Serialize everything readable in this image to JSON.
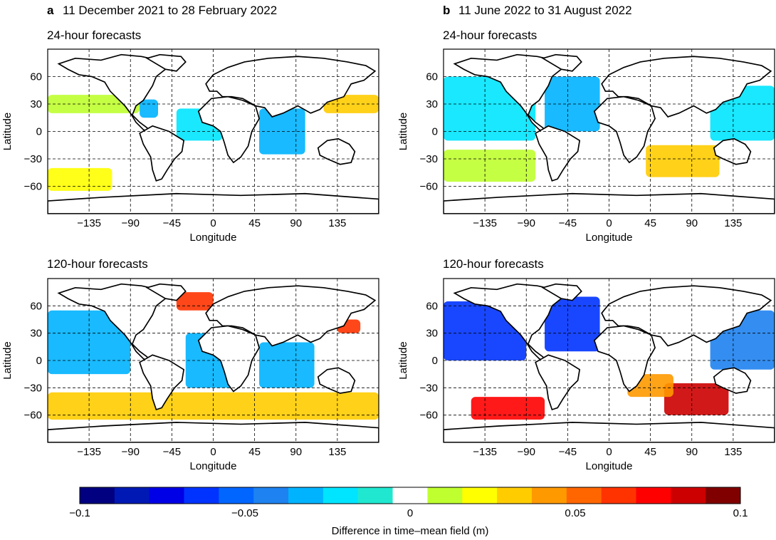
{
  "panels": [
    {
      "letter": "a",
      "period": "11 December 2021 to 28 February 2022",
      "subtitles": [
        "24-hour forecasts",
        "120-hour forecasts"
      ]
    },
    {
      "letter": "b",
      "period": "11 June 2022 to 31 August 2022",
      "subtitles": [
        "24-hour forecasts",
        "120-hour forecasts"
      ]
    }
  ],
  "chart_data": [
    {
      "type": "heatmap",
      "panel": "a",
      "title": "24-hour forecasts",
      "xlabel": "Longitude",
      "ylabel": "Latitude",
      "xlim": [
        -180,
        180
      ],
      "ylim": [
        -90,
        90
      ],
      "xticks": [
        -135,
        -90,
        -45,
        0,
        45,
        90,
        135
      ],
      "yticks": [
        60,
        30,
        0,
        -30,
        -60
      ],
      "grid": true,
      "regions": [
        {
          "lon": [
            -180,
            -80
          ],
          "lat": [
            20,
            40
          ],
          "value": 0.015
        },
        {
          "lon": [
            120,
            180
          ],
          "lat": [
            20,
            40
          ],
          "value": 0.03
        },
        {
          "lon": [
            -180,
            -80
          ],
          "lat": [
            -15,
            15
          ],
          "value": 0.005
        },
        {
          "lon": [
            -180,
            -110
          ],
          "lat": [
            -65,
            -40
          ],
          "value": 0.02
        },
        {
          "lon": [
            50,
            100
          ],
          "lat": [
            -25,
            25
          ],
          "value": -0.03
        },
        {
          "lon": [
            -40,
            10
          ],
          "lat": [
            -10,
            25
          ],
          "value": -0.025
        },
        {
          "lon": [
            -80,
            -60
          ],
          "lat": [
            15,
            35
          ],
          "value": -0.035
        }
      ]
    },
    {
      "type": "heatmap",
      "panel": "b",
      "title": "24-hour forecasts",
      "xlabel": "Longitude",
      "ylabel": "Latitude",
      "xlim": [
        -180,
        180
      ],
      "ylim": [
        -90,
        90
      ],
      "xticks": [
        -135,
        -90,
        -45,
        0,
        45,
        90,
        135
      ],
      "yticks": [
        60,
        30,
        0,
        -30,
        -60
      ],
      "grid": true,
      "regions": [
        {
          "lon": [
            -180,
            -80
          ],
          "lat": [
            -10,
            60
          ],
          "value": -0.025
        },
        {
          "lon": [
            -70,
            -10
          ],
          "lat": [
            0,
            60
          ],
          "value": -0.03
        },
        {
          "lon": [
            -180,
            -80
          ],
          "lat": [
            -55,
            -20
          ],
          "value": 0.015
        },
        {
          "lon": [
            40,
            120
          ],
          "lat": [
            -50,
            -15
          ],
          "value": 0.03
        },
        {
          "lon": [
            110,
            180
          ],
          "lat": [
            -10,
            50
          ],
          "value": -0.025
        }
      ]
    },
    {
      "type": "heatmap",
      "panel": "a",
      "title": "120-hour forecasts",
      "xlabel": "Longitude",
      "ylabel": "Latitude",
      "xlim": [
        -180,
        180
      ],
      "ylim": [
        -90,
        90
      ],
      "xticks": [
        -135,
        -90,
        -45,
        0,
        45,
        90,
        135
      ],
      "yticks": [
        60,
        30,
        0,
        -30,
        -60
      ],
      "grid": true,
      "regions": [
        {
          "lon": [
            -180,
            -90
          ],
          "lat": [
            -15,
            55
          ],
          "value": -0.03
        },
        {
          "lon": [
            -40,
            0
          ],
          "lat": [
            55,
            75
          ],
          "value": 0.06
        },
        {
          "lon": [
            135,
            160
          ],
          "lat": [
            30,
            45
          ],
          "value": 0.06
        },
        {
          "lon": [
            -180,
            180
          ],
          "lat": [
            -65,
            -35
          ],
          "value": 0.03
        },
        {
          "lon": [
            -30,
            20
          ],
          "lat": [
            -30,
            30
          ],
          "value": -0.035
        },
        {
          "lon": [
            50,
            110
          ],
          "lat": [
            -30,
            20
          ],
          "value": -0.035
        }
      ]
    },
    {
      "type": "heatmap",
      "panel": "b",
      "title": "120-hour forecasts",
      "xlabel": "Longitude",
      "ylabel": "Latitude",
      "xlim": [
        -180,
        180
      ],
      "ylim": [
        -90,
        90
      ],
      "xticks": [
        -135,
        -90,
        -45,
        0,
        45,
        90,
        135
      ],
      "yticks": [
        60,
        30,
        0,
        -30,
        -60
      ],
      "grid": true,
      "regions": [
        {
          "lon": [
            -180,
            -90
          ],
          "lat": [
            0,
            65
          ],
          "value": -0.06
        },
        {
          "lon": [
            -70,
            -10
          ],
          "lat": [
            10,
            70
          ],
          "value": -0.06
        },
        {
          "lon": [
            -150,
            -70
          ],
          "lat": [
            -65,
            -40
          ],
          "value": 0.07
        },
        {
          "lon": [
            60,
            130
          ],
          "lat": [
            -60,
            -25
          ],
          "value": 0.08
        },
        {
          "lon": [
            20,
            70
          ],
          "lat": [
            -40,
            -15
          ],
          "value": 0.04
        },
        {
          "lon": [
            110,
            180
          ],
          "lat": [
            -10,
            55
          ],
          "value": -0.045
        }
      ]
    },
    {
      "type": "colorbar",
      "label": "Difference in time–mean field (m)",
      "range": [
        -0.1,
        0.1
      ],
      "ticks": [
        {
          "value": -0.1,
          "label": "−0.1"
        },
        {
          "value": -0.05,
          "label": "−0.05"
        },
        {
          "value": 0,
          "label": "0"
        },
        {
          "value": 0.05,
          "label": "0.05"
        },
        {
          "value": 0.1,
          "label": "0.1"
        }
      ],
      "colors": [
        "#000080",
        "#0019b4",
        "#0000e6",
        "#0033ff",
        "#0066ff",
        "#1e82f0",
        "#00b3ff",
        "#00e5ff",
        "#20e8d0",
        "#ffffff",
        "#bfff30",
        "#ffff00",
        "#ffcc00",
        "#ff9900",
        "#ff6600",
        "#ff3300",
        "#ff0000",
        "#cc0000",
        "#800000"
      ]
    }
  ]
}
